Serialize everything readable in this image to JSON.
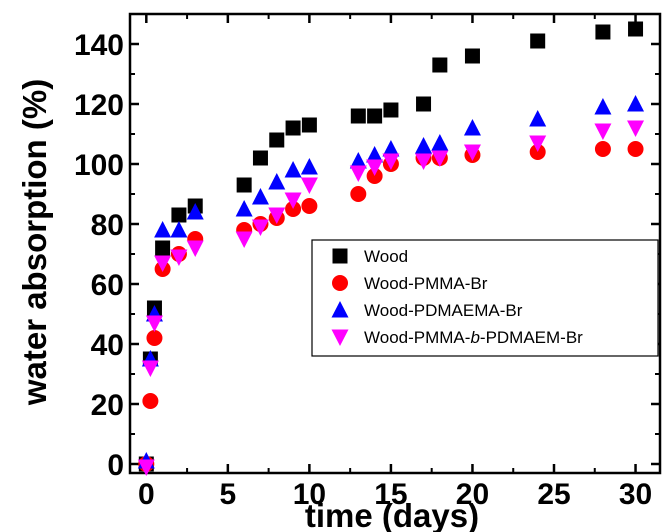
{
  "chart_data": {
    "type": "scatter",
    "xlabel": "time (days)",
    "ylabel": "water absorption (%)",
    "xlim": [
      -1,
      31.5
    ],
    "ylim": [
      -3,
      150
    ],
    "xticks": [
      "0",
      "5",
      "10",
      "15",
      "20",
      "25",
      "30"
    ],
    "yticks": [
      "0",
      "20",
      "40",
      "60",
      "80",
      "100",
      "120",
      "140"
    ],
    "legend": {
      "placement": "center-right"
    },
    "series": [
      {
        "name": "Wood",
        "marker": "square",
        "color": "#000000",
        "x": [
          0,
          0.25,
          0.5,
          1,
          2,
          3,
          6,
          7,
          8,
          9,
          10,
          13,
          14,
          15,
          17,
          18,
          20,
          24,
          28,
          30
        ],
        "y": [
          0,
          35,
          52,
          72,
          83,
          86,
          93,
          102,
          108,
          112,
          113,
          116,
          116,
          118,
          120,
          133,
          136,
          141,
          144,
          145
        ]
      },
      {
        "name": "Wood-PMMA-Br",
        "marker": "circle",
        "color": "#ff0000",
        "x": [
          0,
          0.25,
          0.5,
          1,
          2,
          3,
          6,
          7,
          8,
          9,
          10,
          13,
          14,
          15,
          17,
          18,
          20,
          24,
          28,
          30
        ],
        "y": [
          0,
          21,
          42,
          65,
          70,
          75,
          78,
          80,
          82,
          85,
          86,
          90,
          96,
          100,
          102,
          102,
          103,
          104,
          105,
          105
        ]
      },
      {
        "name": "Wood-PDMAEMA-Br",
        "marker": "triangle-up",
        "color": "#0000ff",
        "x": [
          0,
          0.25,
          0.5,
          1,
          2,
          3,
          6,
          7,
          8,
          9,
          10,
          13,
          14,
          15,
          17,
          18,
          20,
          24,
          28,
          30
        ],
        "y": [
          1,
          35,
          50,
          78,
          78,
          84,
          85,
          89,
          94,
          98,
          99,
          101,
          103,
          105,
          106,
          107,
          112,
          115,
          119,
          120
        ]
      },
      {
        "name": "Wood-PMMA-b-PDMAEM-Br",
        "marker": "triangle-down",
        "color": "#ff00ff",
        "x": [
          0,
          0.25,
          0.5,
          1,
          2,
          3,
          6,
          7,
          8,
          9,
          10,
          13,
          14,
          15,
          17,
          18,
          20,
          24,
          28,
          30
        ],
        "y": [
          -1,
          32,
          47,
          67,
          69,
          72,
          75,
          79,
          83,
          88,
          93,
          97,
          99,
          101,
          101,
          102,
          104,
          107,
          111,
          112
        ]
      }
    ]
  }
}
